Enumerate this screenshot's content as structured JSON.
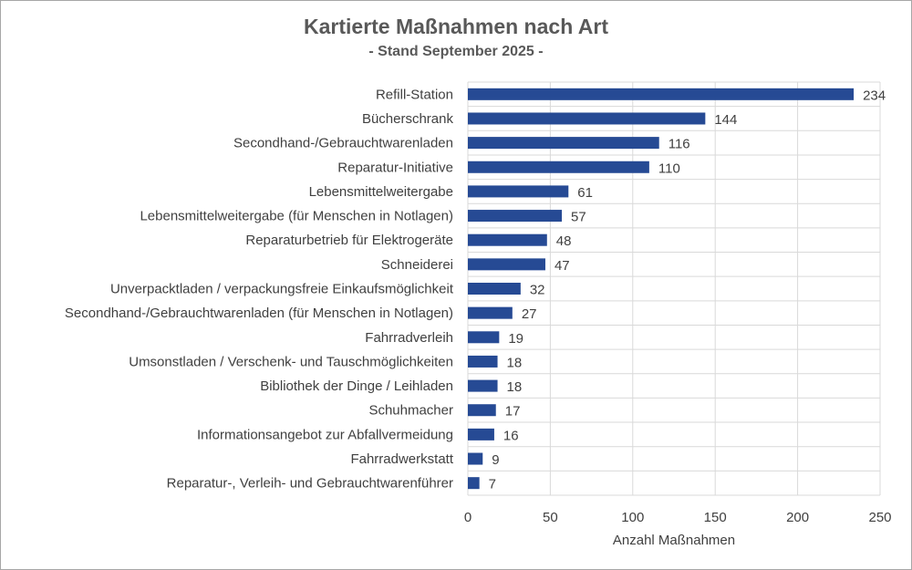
{
  "chart_data": {
    "type": "bar",
    "orientation": "horizontal",
    "title": "Kartierte Maßnahmen nach Art",
    "subtitle": "- Stand September 2025 -",
    "xlabel": "Anzahl Maßnahmen",
    "ylabel": "",
    "xlim": [
      0,
      250
    ],
    "xticks": [
      0,
      50,
      100,
      150,
      200,
      250
    ],
    "grid": true,
    "bar_color": "#264A94",
    "categories": [
      "Refill-Station",
      "Bücherschrank",
      "Secondhand-/Gebrauchtwarenladen",
      "Reparatur-Initiative",
      "Lebensmittelweitergabe",
      "Lebensmittelweitergabe (für Menschen in Notlagen)",
      "Reparaturbetrieb für Elektrogeräte",
      "Schneiderei",
      "Unverpacktladen / verpackungsfreie Einkaufsmöglichkeit",
      "Secondhand-/Gebrauchtwarenladen (für Menschen in Notlagen)",
      "Fahrradverleih",
      "Umsonstladen / Verschenk- und Tauschmöglichkeiten",
      "Bibliothek der Dinge / Leihladen",
      "Schuhmacher",
      "Informationsangebot zur Abfallvermeidung",
      "Fahrradwerkstatt",
      "Reparatur-, Verleih- und Gebrauchtwarenführer"
    ],
    "values": [
      234,
      144,
      116,
      110,
      61,
      57,
      48,
      47,
      32,
      27,
      19,
      18,
      18,
      17,
      16,
      9,
      7
    ]
  }
}
